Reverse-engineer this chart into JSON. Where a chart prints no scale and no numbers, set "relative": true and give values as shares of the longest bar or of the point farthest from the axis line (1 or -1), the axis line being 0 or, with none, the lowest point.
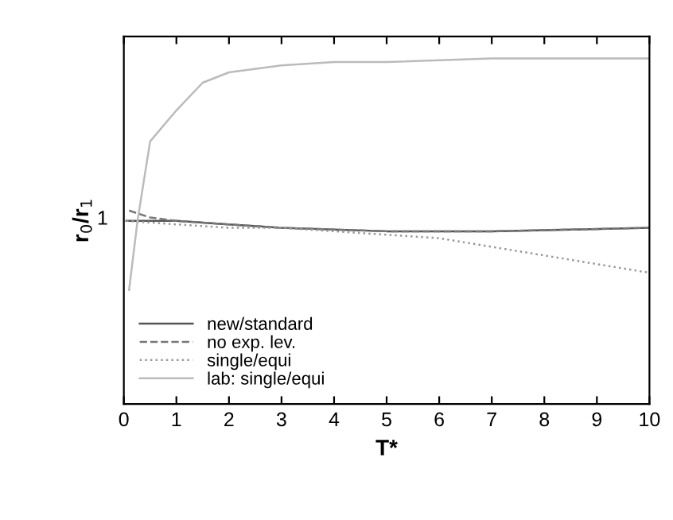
{
  "chart_data": {
    "type": "line",
    "relative": true,
    "xlabel": "T*",
    "ylabel": "r$_{0}$/r$_{1}$",
    "annotations": [
      "1"
    ],
    "xlim": [
      0,
      10
    ],
    "xticks": [
      0,
      1,
      2,
      3,
      4,
      5,
      6,
      7,
      8,
      9,
      10
    ],
    "grid": false,
    "legend": "bottom left",
    "series": [
      {
        "name": "new/standard",
        "color": "#555555",
        "line_style": "solid",
        "x": [
          0.05,
          1,
          2,
          3,
          5,
          7,
          10
        ],
        "values": [
          0.53,
          0.53,
          0.52,
          0.51,
          0.5,
          0.5,
          0.51
        ]
      },
      {
        "name": "no exp. lev.",
        "color": "#777777",
        "line_style": "dashed",
        "x": [
          0.1,
          0.5,
          1,
          2,
          3,
          5,
          7,
          10
        ],
        "values": [
          0.56,
          0.54,
          0.53,
          0.52,
          0.51,
          0.5,
          0.5,
          0.51
        ]
      },
      {
        "name": "single/equi",
        "color": "#999999",
        "line_style": "dotted",
        "x": [
          0.05,
          1,
          2,
          3,
          4,
          5,
          6,
          8,
          10
        ],
        "values": [
          0.53,
          0.52,
          0.51,
          0.51,
          0.5,
          0.49,
          0.48,
          0.43,
          0.38
        ]
      },
      {
        "name": "lab: single/equi",
        "color": "#bbbbbb",
        "line_style": "solid",
        "x": [
          0.1,
          0.26,
          0.5,
          1,
          1.5,
          2,
          3,
          4,
          5,
          7,
          10
        ],
        "values": [
          0.33,
          0.53,
          0.76,
          0.85,
          0.93,
          0.96,
          0.98,
          0.99,
          0.99,
          1.0,
          1.0
        ]
      }
    ]
  }
}
